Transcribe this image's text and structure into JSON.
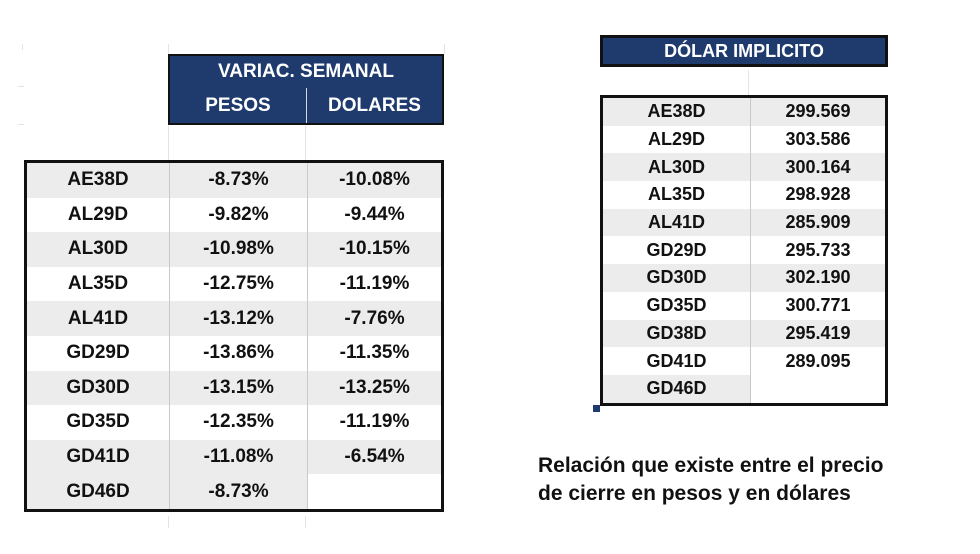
{
  "variacion": {
    "title": "VARIAC. SEMANAL",
    "col_pesos": "PESOS",
    "col_dolares": "DOLARES",
    "rows": [
      {
        "ticker": "AE38D",
        "pesos": "-8.73%",
        "dolares": "-10.08%"
      },
      {
        "ticker": "AL29D",
        "pesos": "-9.82%",
        "dolares": "-9.44%"
      },
      {
        "ticker": "AL30D",
        "pesos": "-10.98%",
        "dolares": "-10.15%"
      },
      {
        "ticker": "AL35D",
        "pesos": "-12.75%",
        "dolares": "-11.19%"
      },
      {
        "ticker": "AL41D",
        "pesos": "-13.12%",
        "dolares": "-7.76%"
      },
      {
        "ticker": "GD29D",
        "pesos": "-13.86%",
        "dolares": "-11.35%"
      },
      {
        "ticker": "GD30D",
        "pesos": "-13.15%",
        "dolares": "-13.25%"
      },
      {
        "ticker": "GD35D",
        "pesos": "-12.35%",
        "dolares": "-11.19%"
      },
      {
        "ticker": "GD41D",
        "pesos": "-11.08%",
        "dolares": "-6.54%"
      },
      {
        "ticker": "GD46D",
        "pesos": "-8.73%",
        "dolares": ""
      }
    ]
  },
  "dolar_implicito": {
    "title": "DÓLAR IMPLICITO",
    "rows": [
      {
        "ticker": "AE38D",
        "valor": "299.569"
      },
      {
        "ticker": "AL29D",
        "valor": "303.586"
      },
      {
        "ticker": "AL30D",
        "valor": "300.164"
      },
      {
        "ticker": "AL35D",
        "valor": "298.928"
      },
      {
        "ticker": "AL41D",
        "valor": "285.909"
      },
      {
        "ticker": "GD29D",
        "valor": "295.733"
      },
      {
        "ticker": "GD30D",
        "valor": "302.190"
      },
      {
        "ticker": "GD35D",
        "valor": "300.771"
      },
      {
        "ticker": "GD38D",
        "valor": "295.419"
      },
      {
        "ticker": "GD41D",
        "valor": "289.095"
      },
      {
        "ticker": "GD46D",
        "valor": ""
      }
    ]
  },
  "caption": {
    "line1": "Relación que existe entre el precio",
    "line2": "de cierre en pesos y en dólares"
  },
  "colors": {
    "header_bg": "#1f3b6e",
    "row_alt_bg": "#ececec"
  }
}
